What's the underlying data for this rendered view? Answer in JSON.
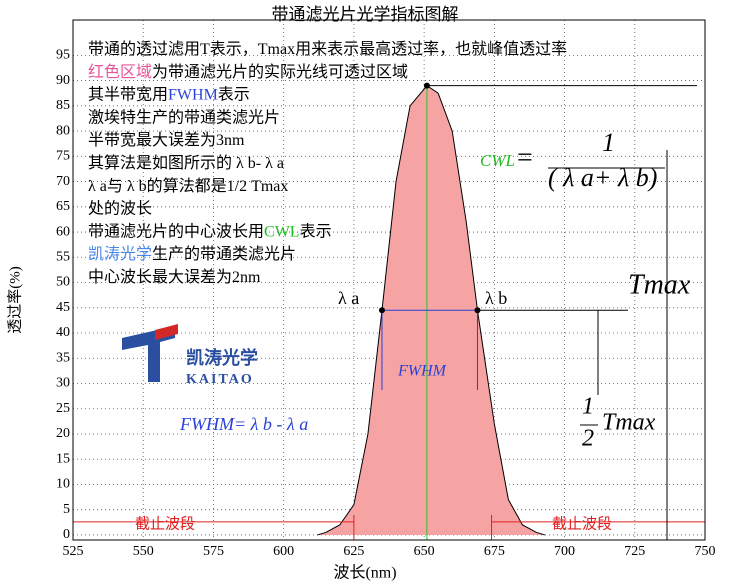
{
  "chart_data": {
    "type": "area",
    "title": "带通滤光片光学指标图解",
    "x_label": "波长(nm)",
    "y_label": "透过率(%)",
    "x": [
      612,
      615,
      620,
      625,
      630,
      635,
      640,
      645,
      651,
      655,
      660,
      665,
      669,
      675,
      680,
      685,
      690,
      693
    ],
    "values": [
      0,
      0.5,
      2,
      6,
      20,
      44.5,
      70,
      85,
      89,
      87.5,
      80,
      62,
      44.5,
      22,
      7,
      2,
      0.5,
      0
    ],
    "color": "#f5a3a3",
    "xlim": [
      525,
      750
    ],
    "ylim": [
      -1,
      102
    ],
    "xticks": [
      525,
      550,
      575,
      600,
      625,
      650,
      675,
      700,
      725,
      750
    ],
    "yticks": [
      0,
      5,
      10,
      15,
      20,
      25,
      30,
      35,
      40,
      45,
      50,
      55,
      60,
      65,
      70,
      75,
      80,
      85,
      90,
      95
    ],
    "grid": true,
    "center": 651,
    "tmax": 89,
    "lambda_a": 635,
    "lambda_b": 669,
    "half_max": 44.5,
    "cutoff_level": 2.6,
    "cutoff_edges": [
      625,
      674
    ],
    "text_lines": [
      [
        {
          "text": "带通的透过滤用T表示，Tmax用来表示最高透过率，也就峰值透过率",
          "color": "#000000"
        }
      ],
      [
        {
          "text": "红色区域",
          "color": "#e8559a"
        },
        {
          "text": "为带通滤光片的实际光线可透过区域",
          "color": "#000000"
        }
      ],
      [
        {
          "text": "其半带宽用",
          "color": "#000000"
        },
        {
          "text": "FWHM",
          "color": "#2a3fd8"
        },
        {
          "text": "表示",
          "color": "#000000"
        }
      ],
      [
        {
          "text": "激埃特生产的带通类滤光片",
          "color": "#000000"
        }
      ],
      [
        {
          "text": "半带宽最大误差为3nm",
          "color": "#000000"
        }
      ],
      [
        {
          "text": "其算法是如图所示的 λ b- λ a",
          "color": "#000000"
        }
      ],
      [
        {
          "text": " λ a与 λ b的算法都是1/2 Tmax",
          "color": "#000000"
        }
      ],
      [
        {
          "text": " 处的波长",
          "color": "#000000"
        }
      ],
      [
        {
          "text": "带通滤光片的中心波长用",
          "color": "#000000"
        },
        {
          "text": "CWL",
          "color": "#22bb22"
        },
        {
          "text": "表示",
          "color": "#000000"
        }
      ],
      [
        {
          "text": "凯涛光学",
          "color": "#4a86e8"
        },
        {
          "text": "生产的带通类滤光片",
          "color": "#000000"
        }
      ],
      [
        {
          "text": "中心波长最大误差为2nm",
          "color": "#000000"
        }
      ]
    ],
    "annotations": [
      "λ a",
      "λ b",
      "FWHM",
      "FWHM= λ b - λ a",
      "截止波段",
      "截止波段",
      "Tmax",
      "1",
      "2",
      "Tmax",
      "CWL",
      "=",
      "1",
      "( λ a+ λ b)"
    ],
    "logo": {
      "name": "凯涛光学",
      "subtitle": "KAITAO"
    }
  }
}
